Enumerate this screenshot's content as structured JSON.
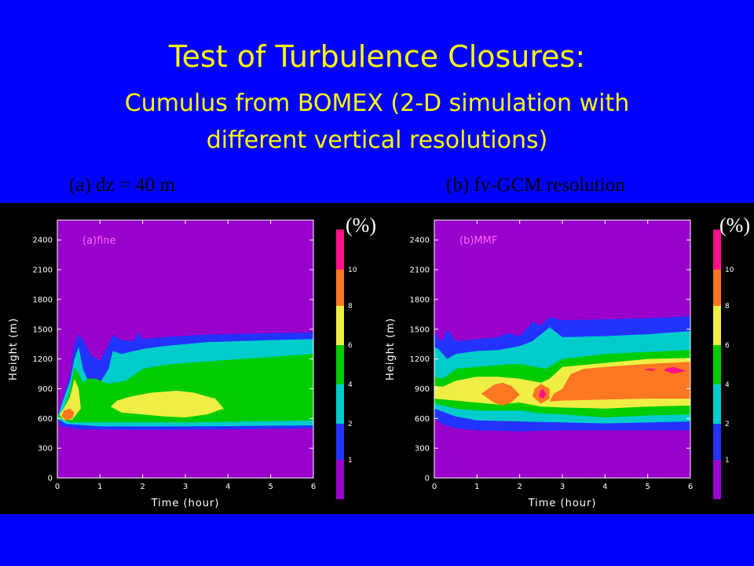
{
  "slide": {
    "title": "Test of Turbulence Closures:",
    "subtitle_line1": "Cumulus  from BOMEX (2-D simulation with",
    "subtitle_line2": "different vertical resolutions)",
    "caption_a": "(a) dz = 40 m",
    "caption_b": "(b) fv-GCM resolution",
    "colorbar_unit": "(%)"
  },
  "colors": {
    "background": "#0000ff",
    "title": "#ffff00",
    "levels": [
      "#9900cc",
      "#2233ff",
      "#00cccc",
      "#00cc00",
      "#eeee44",
      "#ff7722",
      "#ff1188"
    ]
  },
  "chart_data": [
    {
      "type": "heatmap",
      "panel_label": "(a)fine",
      "xlabel": "Time (hour)",
      "ylabel": "Height (m)",
      "xlim": [
        0,
        6
      ],
      "ylim": [
        0,
        2600
      ],
      "x_ticks": [
        0,
        1,
        2,
        3,
        4,
        5,
        6
      ],
      "y_ticks": [
        0,
        300,
        600,
        900,
        1200,
        1500,
        1800,
        2100,
        2400
      ],
      "colorbar": {
        "levels": [
          1,
          2,
          4,
          6,
          8,
          10
        ],
        "unit": "(%)"
      },
      "contours": [
        {
          "level": 1,
          "points": [
            [
              0,
              590
            ],
            [
              0.1,
              520
            ],
            [
              0.5,
              490
            ],
            [
              2,
              485
            ],
            [
              4,
              490
            ],
            [
              6,
              500
            ],
            [
              6,
              1470
            ],
            [
              5,
              1460
            ],
            [
              3.5,
              1445
            ],
            [
              2.5,
              1420
            ],
            [
              2,
              1400
            ],
            [
              1.9,
              1470
            ],
            [
              1.8,
              1380
            ],
            [
              1.5,
              1390
            ],
            [
              1.3,
              1440
            ],
            [
              1.2,
              1350
            ],
            [
              1.0,
              1180
            ],
            [
              0.8,
              1230
            ],
            [
              0.6,
              1390
            ],
            [
              0.5,
              1450
            ],
            [
              0.4,
              1350
            ],
            [
              0.3,
              1050
            ],
            [
              0.1,
              760
            ]
          ]
        },
        {
          "level": 2,
          "points": [
            [
              0,
              600
            ],
            [
              0.2,
              545
            ],
            [
              1,
              520
            ],
            [
              3,
              520
            ],
            [
              6,
              530
            ],
            [
              6,
              1400
            ],
            [
              5,
              1390
            ],
            [
              3.5,
              1370
            ],
            [
              2.5,
              1330
            ],
            [
              2,
              1300
            ],
            [
              1.8,
              1280
            ],
            [
              1.5,
              1250
            ],
            [
              1.3,
              1280
            ],
            [
              1.2,
              1100
            ],
            [
              1.0,
              960
            ],
            [
              0.8,
              960
            ],
            [
              0.7,
              1000
            ],
            [
              0.6,
              1100
            ],
            [
              0.5,
              1320
            ],
            [
              0.4,
              1200
            ],
            [
              0.3,
              980
            ],
            [
              0.1,
              740
            ]
          ]
        },
        {
          "level": 4,
          "points": [
            [
              0,
              610
            ],
            [
              0.3,
              560
            ],
            [
              1,
              560
            ],
            [
              3,
              560
            ],
            [
              6,
              580
            ],
            [
              6,
              1250
            ],
            [
              5,
              1220
            ],
            [
              4,
              1190
            ],
            [
              3,
              1160
            ],
            [
              2.5,
              1140
            ],
            [
              2,
              1100
            ],
            [
              1.6,
              980
            ],
            [
              1.2,
              950
            ],
            [
              0.9,
              1000
            ],
            [
              0.7,
              1000
            ],
            [
              0.6,
              960
            ],
            [
              0.5,
              1050
            ],
            [
              0.4,
              1120
            ],
            [
              0.3,
              900
            ],
            [
              0.15,
              700
            ]
          ]
        },
        {
          "level": 6,
          "points": [
            [
              0.05,
              640
            ],
            [
              0.15,
              580
            ],
            [
              0.35,
              590
            ],
            [
              0.55,
              700
            ],
            [
              0.5,
              900
            ],
            [
              0.4,
              1000
            ],
            [
              0.3,
              820
            ],
            [
              0.15,
              700
            ]
          ]
        },
        {
          "level": 6,
          "points": [
            [
              1.25,
              720
            ],
            [
              1.5,
              660
            ],
            [
              2,
              640
            ],
            [
              2.5,
              620
            ],
            [
              3,
              610
            ],
            [
              3.5,
              640
            ],
            [
              3.9,
              700
            ],
            [
              3.7,
              800
            ],
            [
              3.2,
              860
            ],
            [
              2.8,
              880
            ],
            [
              2.2,
              860
            ],
            [
              1.7,
              820
            ],
            [
              1.4,
              780
            ]
          ]
        },
        {
          "level": 8,
          "points": [
            [
              0.1,
              620
            ],
            [
              0.2,
              580
            ],
            [
              0.35,
              600
            ],
            [
              0.4,
              660
            ],
            [
              0.3,
              700
            ],
            [
              0.15,
              680
            ]
          ]
        }
      ]
    },
    {
      "type": "heatmap",
      "panel_label": "(b)MMF",
      "xlabel": "Time (hour)",
      "ylabel": "Height (m)",
      "xlim": [
        0,
        6
      ],
      "ylim": [
        0,
        2600
      ],
      "x_ticks": [
        0,
        1,
        2,
        3,
        4,
        5,
        6
      ],
      "y_ticks": [
        0,
        300,
        600,
        900,
        1200,
        1500,
        1800,
        2100,
        2400
      ],
      "colorbar": {
        "levels": [
          1,
          2,
          4,
          6,
          8,
          10
        ],
        "unit": "(%)"
      },
      "contours": [
        {
          "level": 1,
          "points": [
            [
              0,
              600
            ],
            [
              0.2,
              540
            ],
            [
              0.5,
              500
            ],
            [
              1,
              480
            ],
            [
              2,
              470
            ],
            [
              3,
              480
            ],
            [
              6,
              480
            ],
            [
              6,
              1630
            ],
            [
              5,
              1610
            ],
            [
              4,
              1600
            ],
            [
              3,
              1590
            ],
            [
              2.7,
              1620
            ],
            [
              2.5,
              1540
            ],
            [
              2.3,
              1570
            ],
            [
              2.0,
              1430
            ],
            [
              1.7,
              1460
            ],
            [
              1.5,
              1420
            ],
            [
              1,
              1400
            ],
            [
              0.5,
              1380
            ],
            [
              0.3,
              1500
            ],
            [
              0.2,
              1380
            ],
            [
              0.1,
              1400
            ],
            [
              0,
              1470
            ]
          ]
        },
        {
          "level": 2,
          "points": [
            [
              0,
              700
            ],
            [
              0.5,
              620
            ],
            [
              1,
              580
            ],
            [
              2,
              570
            ],
            [
              3,
              560
            ],
            [
              4,
              550
            ],
            [
              6,
              570
            ],
            [
              6,
              1480
            ],
            [
              5,
              1450
            ],
            [
              4,
              1430
            ],
            [
              3,
              1420
            ],
            [
              2.7,
              1520
            ],
            [
              2.5,
              1450
            ],
            [
              2.3,
              1380
            ],
            [
              2,
              1330
            ],
            [
              1.5,
              1290
            ],
            [
              1,
              1280
            ],
            [
              0.5,
              1250
            ],
            [
              0.3,
              1200
            ],
            [
              0.1,
              1300
            ],
            [
              0,
              1320
            ]
          ]
        },
        {
          "level": 4,
          "points": [
            [
              0,
              750
            ],
            [
              0.5,
              700
            ],
            [
              1,
              680
            ],
            [
              2,
              680
            ],
            [
              2.5,
              650
            ],
            [
              3,
              640
            ],
            [
              4,
              610
            ],
            [
              5,
              630
            ],
            [
              6,
              640
            ],
            [
              6,
              1290
            ],
            [
              5,
              1270
            ],
            [
              4,
              1250
            ],
            [
              3,
              1200
            ],
            [
              2.6,
              1100
            ],
            [
              2,
              1150
            ],
            [
              1.5,
              1140
            ],
            [
              1,
              1120
            ],
            [
              0.5,
              1100
            ],
            [
              0.2,
              1000
            ],
            [
              0,
              1020
            ]
          ]
        },
        {
          "level": 6,
          "points": [
            [
              0,
              800
            ],
            [
              0.5,
              780
            ],
            [
              1,
              760
            ],
            [
              1.5,
              740
            ],
            [
              2,
              760
            ],
            [
              2.5,
              720
            ],
            [
              3,
              710
            ],
            [
              4,
              700
            ],
            [
              5,
              720
            ],
            [
              6,
              730
            ],
            [
              6,
              1210
            ],
            [
              5,
              1200
            ],
            [
              4,
              1160
            ],
            [
              3,
              1120
            ],
            [
              2.7,
              1000
            ],
            [
              2.5,
              960
            ],
            [
              2,
              1000
            ],
            [
              1.5,
              1020
            ],
            [
              1,
              1020
            ],
            [
              0.5,
              980
            ],
            [
              0.2,
              920
            ],
            [
              0,
              930
            ]
          ]
        },
        {
          "level": 8,
          "points": [
            [
              1.1,
              850
            ],
            [
              1.4,
              760
            ],
            [
              1.6,
              730
            ],
            [
              1.8,
              760
            ],
            [
              2,
              840
            ],
            [
              1.8,
              930
            ],
            [
              1.6,
              960
            ],
            [
              1.4,
              940
            ]
          ]
        },
        {
          "level": 8,
          "points": [
            [
              2.3,
              820
            ],
            [
              2.5,
              750
            ],
            [
              2.7,
              800
            ],
            [
              2.7,
              900
            ],
            [
              2.5,
              950
            ],
            [
              2.35,
              900
            ]
          ]
        },
        {
          "level": 8,
          "points": [
            [
              2.7,
              770
            ],
            [
              3,
              780
            ],
            [
              4,
              790
            ],
            [
              5,
              800
            ],
            [
              6,
              800
            ],
            [
              6,
              1170
            ],
            [
              5,
              1150
            ],
            [
              4,
              1120
            ],
            [
              3.5,
              1100
            ],
            [
              3.2,
              1050
            ],
            [
              3.0,
              900
            ],
            [
              2.8,
              850
            ]
          ]
        },
        {
          "level": 10,
          "points": [
            [
              5.4,
              1080
            ],
            [
              5.6,
              1050
            ],
            [
              5.9,
              1080
            ],
            [
              5.6,
              1120
            ],
            [
              5.4,
              1100
            ]
          ]
        },
        {
          "level": 10,
          "points": [
            [
              4.9,
              1090
            ],
            [
              5.1,
              1080
            ],
            [
              5.2,
              1095
            ],
            [
              5.05,
              1105
            ]
          ]
        },
        {
          "level": 10,
          "points": [
            [
              2.45,
              820
            ],
            [
              2.55,
              800
            ],
            [
              2.62,
              840
            ],
            [
              2.55,
              900
            ],
            [
              2.47,
              870
            ]
          ]
        }
      ]
    }
  ]
}
